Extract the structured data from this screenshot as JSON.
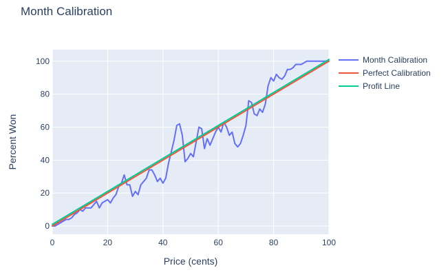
{
  "chart_data": {
    "type": "line",
    "title": "Month Calibration",
    "xlabel": "Price (cents)",
    "ylabel": "Percent Won",
    "xlim": [
      0,
      100
    ],
    "ylim": [
      -5,
      107
    ],
    "x_ticks": [
      0,
      20,
      40,
      60,
      80,
      100
    ],
    "y_ticks": [
      0,
      20,
      40,
      60,
      80,
      100
    ],
    "x_tick_labels": [
      "0",
      "20",
      "40",
      "60",
      "80",
      "100"
    ],
    "y_tick_labels": [
      "0",
      "20",
      "40",
      "60",
      "80",
      "100"
    ],
    "grid": true,
    "legend_position": "right",
    "series": [
      {
        "name": "Month Calibration",
        "color": "#636efa",
        "points": [
          [
            0,
            0
          ],
          [
            1,
            0
          ],
          [
            2,
            1
          ],
          [
            3,
            2
          ],
          [
            4,
            3
          ],
          [
            5,
            4
          ],
          [
            6,
            4
          ],
          [
            7,
            5
          ],
          [
            8,
            7
          ],
          [
            9,
            8
          ],
          [
            10,
            10
          ],
          [
            11,
            9
          ],
          [
            12,
            11
          ],
          [
            13,
            11
          ],
          [
            14,
            11
          ],
          [
            15,
            13
          ],
          [
            16,
            15
          ],
          [
            17,
            11
          ],
          [
            18,
            14
          ],
          [
            19,
            15
          ],
          [
            20,
            16
          ],
          [
            21,
            14
          ],
          [
            22,
            17
          ],
          [
            23,
            19
          ],
          [
            24,
            24
          ],
          [
            25,
            26
          ],
          [
            26,
            31
          ],
          [
            27,
            25
          ],
          [
            28,
            25
          ],
          [
            29,
            18
          ],
          [
            30,
            21
          ],
          [
            31,
            19
          ],
          [
            32,
            25
          ],
          [
            33,
            27
          ],
          [
            34,
            29
          ],
          [
            35,
            34
          ],
          [
            36,
            34
          ],
          [
            37,
            31
          ],
          [
            38,
            27
          ],
          [
            39,
            29
          ],
          [
            40,
            26
          ],
          [
            41,
            29
          ],
          [
            42,
            38
          ],
          [
            43,
            45
          ],
          [
            44,
            52
          ],
          [
            45,
            61
          ],
          [
            46,
            62
          ],
          [
            47,
            55
          ],
          [
            48,
            39
          ],
          [
            49,
            41
          ],
          [
            50,
            44
          ],
          [
            51,
            42
          ],
          [
            52,
            51
          ],
          [
            53,
            60
          ],
          [
            54,
            59
          ],
          [
            55,
            47
          ],
          [
            56,
            53
          ],
          [
            57,
            49
          ],
          [
            58,
            53
          ],
          [
            59,
            57
          ],
          [
            60,
            60
          ],
          [
            61,
            57
          ],
          [
            62,
            63
          ],
          [
            63,
            60
          ],
          [
            64,
            55
          ],
          [
            65,
            57
          ],
          [
            66,
            50
          ],
          [
            67,
            48
          ],
          [
            68,
            50
          ],
          [
            69,
            55
          ],
          [
            70,
            61
          ],
          [
            71,
            76
          ],
          [
            72,
            75
          ],
          [
            73,
            68
          ],
          [
            74,
            67
          ],
          [
            75,
            71
          ],
          [
            76,
            69
          ],
          [
            77,
            74
          ],
          [
            78,
            85
          ],
          [
            79,
            90
          ],
          [
            80,
            88
          ],
          [
            81,
            92
          ],
          [
            82,
            90
          ],
          [
            83,
            89
          ],
          [
            84,
            91
          ],
          [
            85,
            95
          ],
          [
            86,
            95
          ],
          [
            87,
            96
          ],
          [
            88,
            98
          ],
          [
            89,
            98
          ],
          [
            90,
            98
          ],
          [
            91,
            99
          ],
          [
            92,
            100
          ],
          [
            93,
            100
          ],
          [
            94,
            100
          ],
          [
            95,
            100
          ],
          [
            96,
            100
          ],
          [
            97,
            100
          ],
          [
            98,
            100
          ],
          [
            99,
            100
          ],
          [
            100,
            101
          ]
        ]
      },
      {
        "name": "Perfect Calibration",
        "color": "#ef553b",
        "points": [
          [
            0,
            0
          ],
          [
            100,
            100
          ]
        ]
      },
      {
        "name": "Profit Line",
        "color": "#00cc96",
        "points": [
          [
            0,
            1
          ],
          [
            100,
            101
          ]
        ]
      }
    ]
  }
}
